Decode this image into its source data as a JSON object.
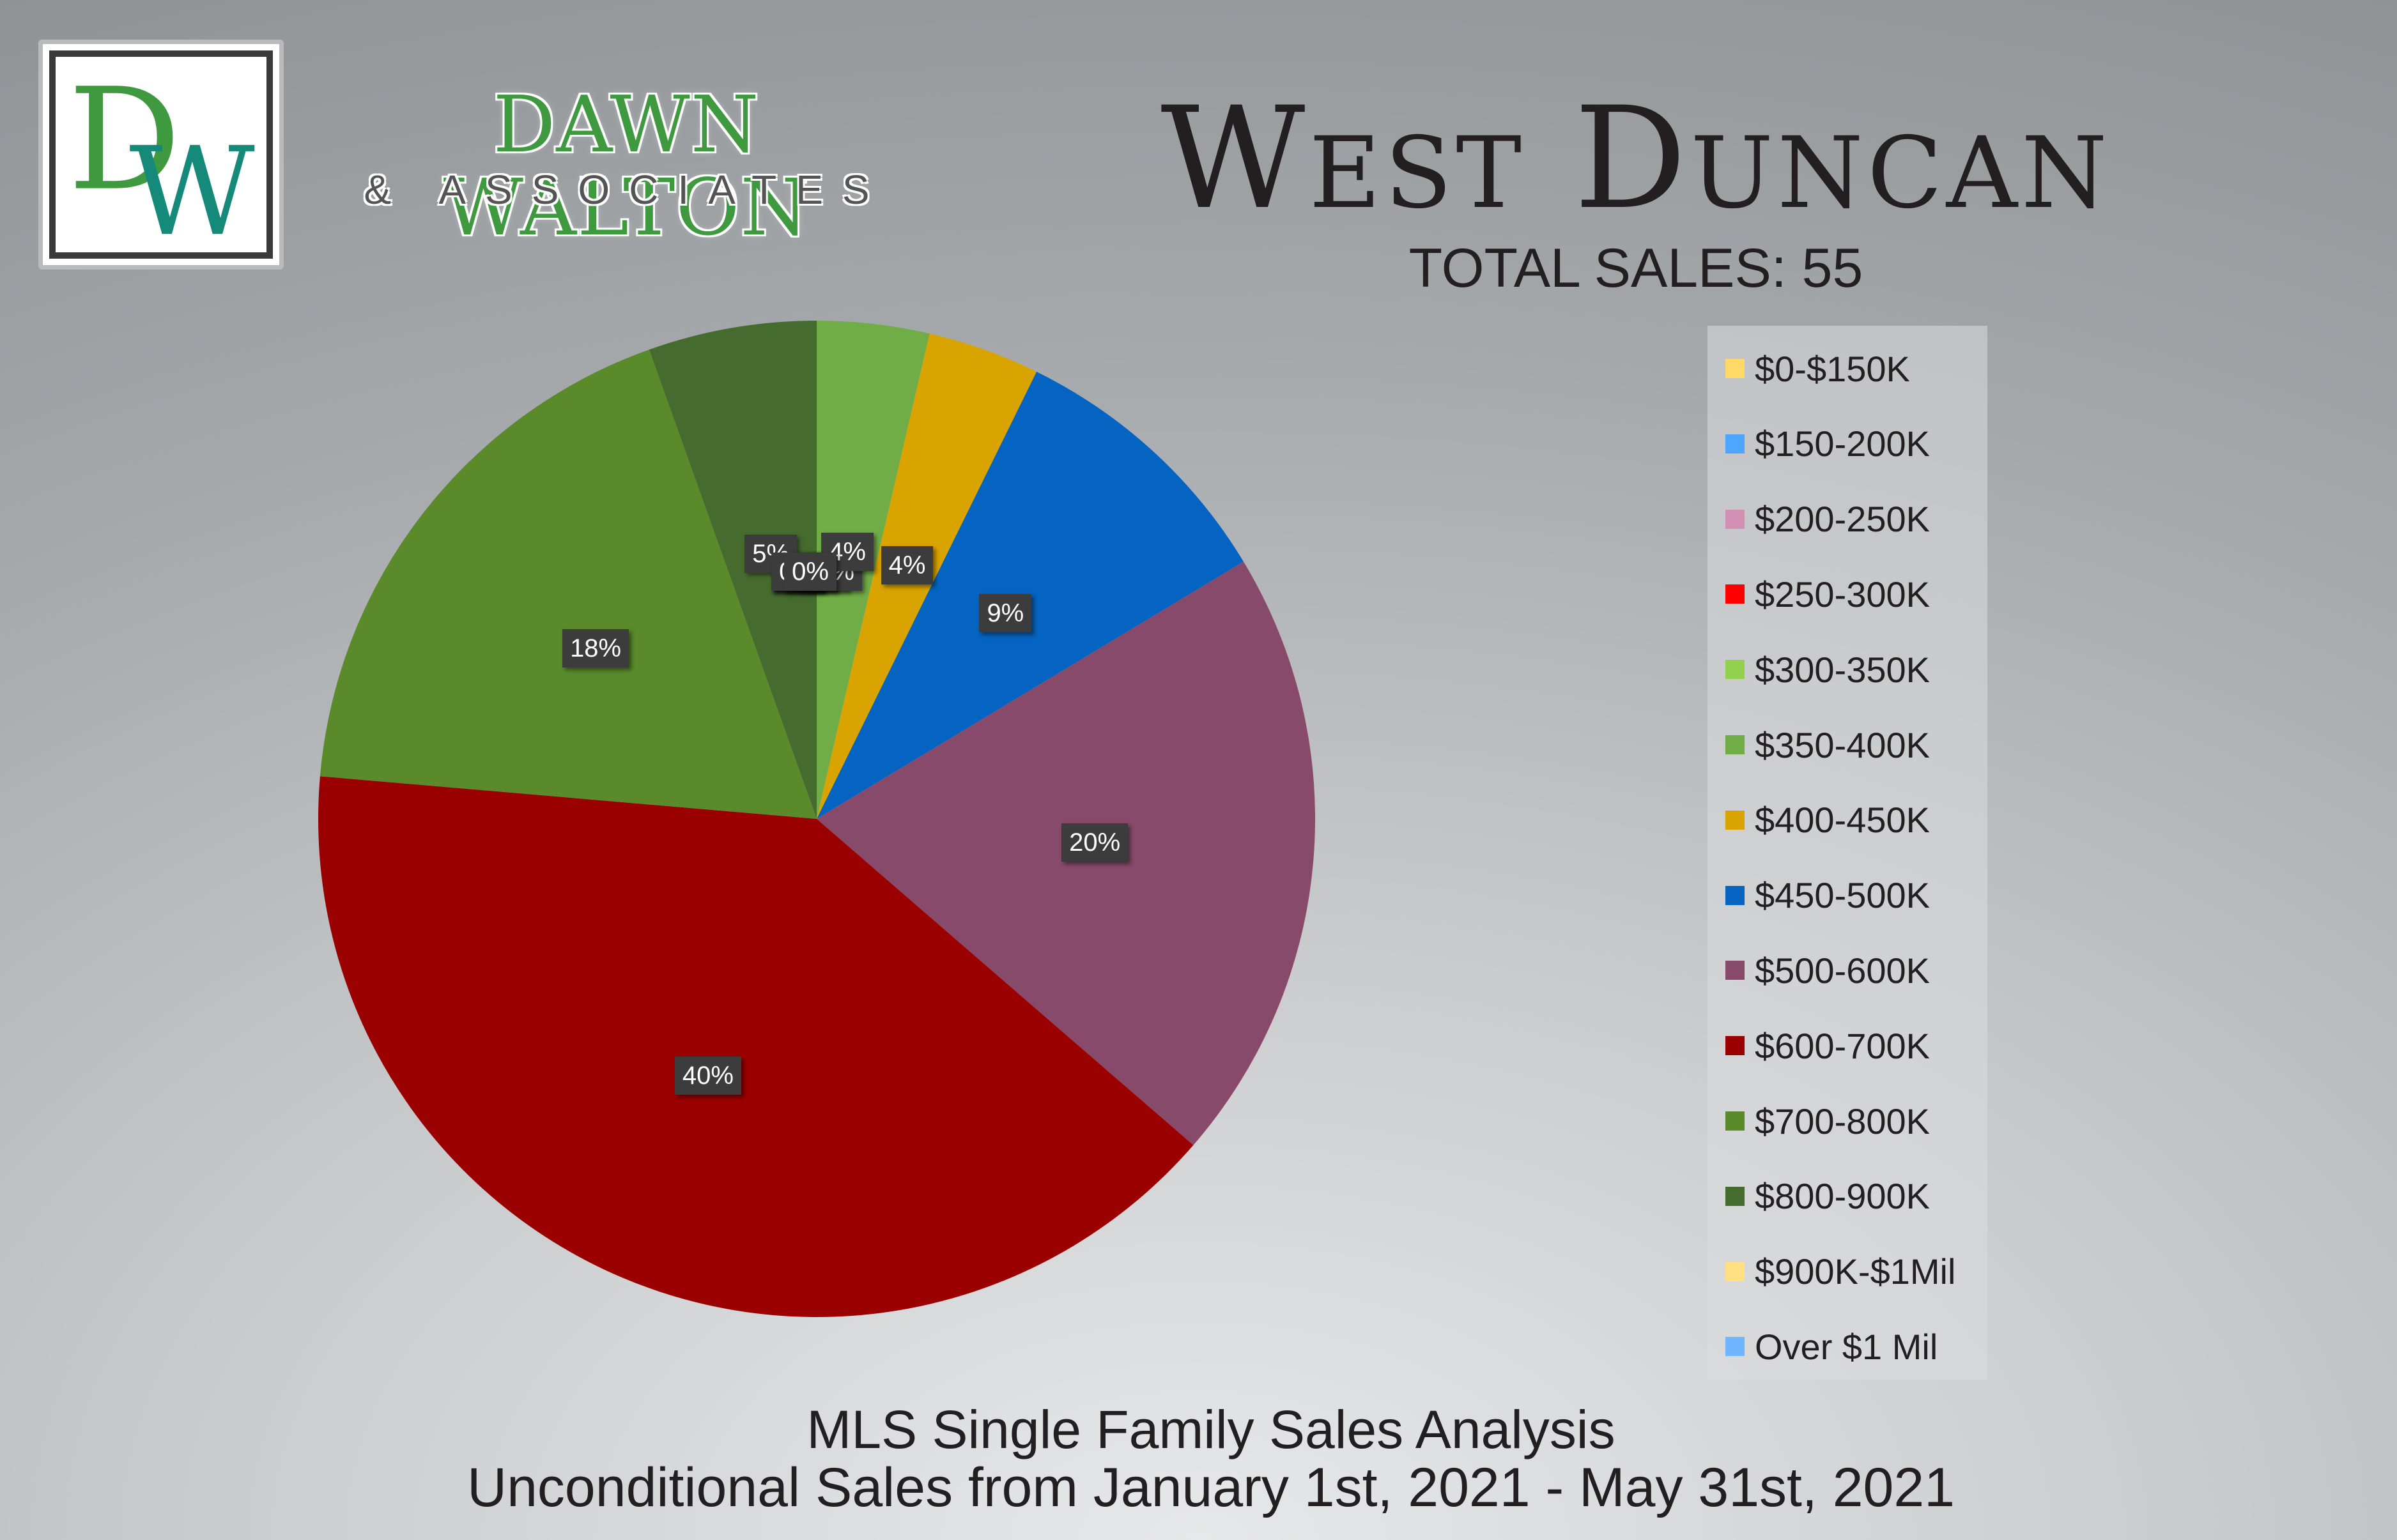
{
  "logo": {
    "monogram": "DW",
    "name": "DAWN WALTON",
    "subtitle": "& ASSOCIATES"
  },
  "header": {
    "title": "West Duncan",
    "total_sales": "TOTAL SALES: 55"
  },
  "caption": {
    "line1": "MLS Single Family Sales Analysis",
    "line2": "Unconditional Sales from January 1st, 2021 - May 31st, 2021"
  },
  "chart_data": {
    "type": "pie",
    "legend_position": "right",
    "categories": [
      "$0-$150K",
      "$150-200K",
      "$200-250K",
      "$250-300K",
      "$300-350K",
      "$350-400K",
      "$400-450K",
      "$450-500K",
      "$500-600K",
      "$600-700K",
      "$700-800K",
      "$800-900K",
      "$900K-$1Mil",
      "Over $1 Mil"
    ],
    "values": [
      0,
      0,
      0,
      0,
      0,
      2,
      2,
      5,
      11,
      22,
      10,
      3,
      0,
      0
    ],
    "data_labels": [
      "0%",
      "0%",
      "0%",
      "0%",
      "0%",
      "4%",
      "4%",
      "9%",
      "20%",
      "40%",
      "18%",
      "5%",
      "0%",
      "0%"
    ],
    "colors": [
      "#ffd966",
      "#4da6ff",
      "#d291b4",
      "#ff0000",
      "#92d050",
      "#70ad47",
      "#d9a300",
      "#0563c1",
      "#874a6a",
      "#9b0000",
      "#5a8a2a",
      "#466b2f",
      "#ffe080",
      "#6fb6ff"
    ]
  }
}
